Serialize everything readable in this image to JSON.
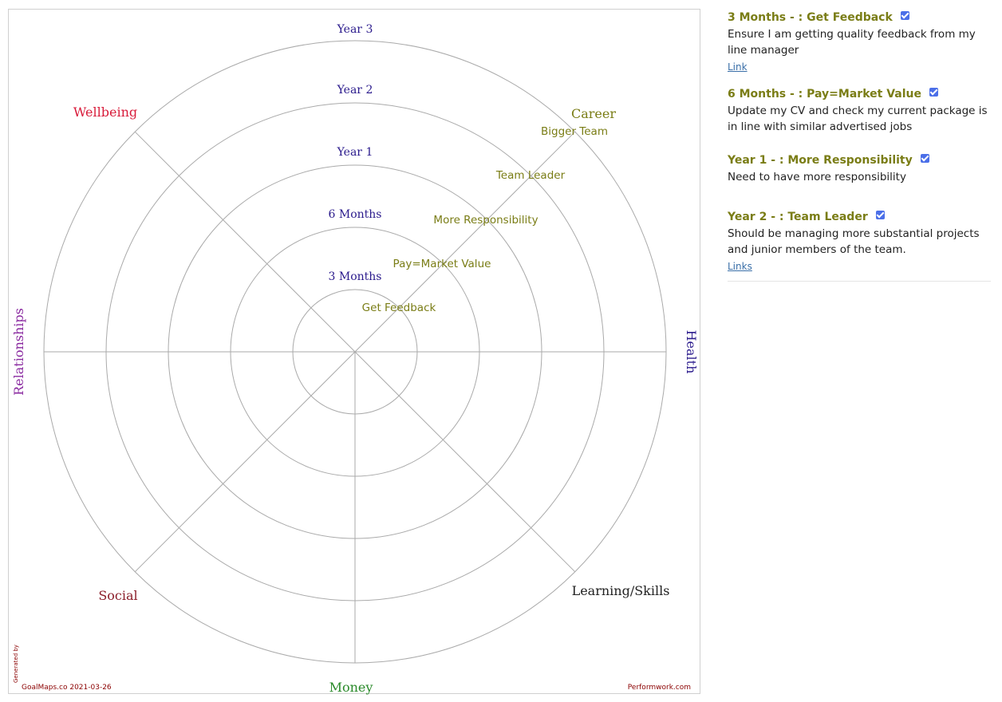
{
  "map": {
    "rings": [
      {
        "label": "3 Months"
      },
      {
        "label": "6 Months"
      },
      {
        "label": "Year 1"
      },
      {
        "label": "Year 2"
      },
      {
        "label": "Year 3"
      }
    ],
    "categories": [
      {
        "label": "Career",
        "color": "#7a7d16"
      },
      {
        "label": "Health",
        "color": "#2a1a8c"
      },
      {
        "label": "Learning/Skills",
        "color": "#222222"
      },
      {
        "label": "Money",
        "color": "#2a8a2a"
      },
      {
        "label": "Social",
        "color": "#8b1e2a"
      },
      {
        "label": "Relationships",
        "color": "#8a2aa0"
      },
      {
        "label": "Wellbeing",
        "color": "#d81b3a"
      }
    ],
    "career_goals": [
      {
        "label": "Get Feedback"
      },
      {
        "label": "Pay=Market Value"
      },
      {
        "label": "More Responsibility"
      },
      {
        "label": "Team Leader"
      },
      {
        "label": "Bigger Team"
      }
    ],
    "footer": {
      "generated_by": "Generated by",
      "source": "GoalMaps.co 2021-03-26",
      "brand": "Performwork.com"
    },
    "colors": {
      "ring_label": "#2a1a8c",
      "grid": "#aaaaaa",
      "goal_text": "#7a7d16",
      "footer": "#8b0000"
    }
  },
  "goals": [
    {
      "title": "3 Months - : Get Feedback",
      "checked": true,
      "description": "Ensure I am getting quality feedback from my line manager",
      "link": "Link"
    },
    {
      "title": "6 Months - : Pay=Market Value",
      "checked": true,
      "description": "Update my CV and check my current package is in line with similar advertised jobs",
      "link": ""
    },
    {
      "title": "Year 1 - : More Responsibility",
      "checked": true,
      "description": "Need to have more responsibility",
      "link": ""
    },
    {
      "title": "Year 2 - : Team Leader",
      "checked": true,
      "description": "Should be managing more substantial projects and junior members of the team.",
      "link": "Links"
    }
  ]
}
